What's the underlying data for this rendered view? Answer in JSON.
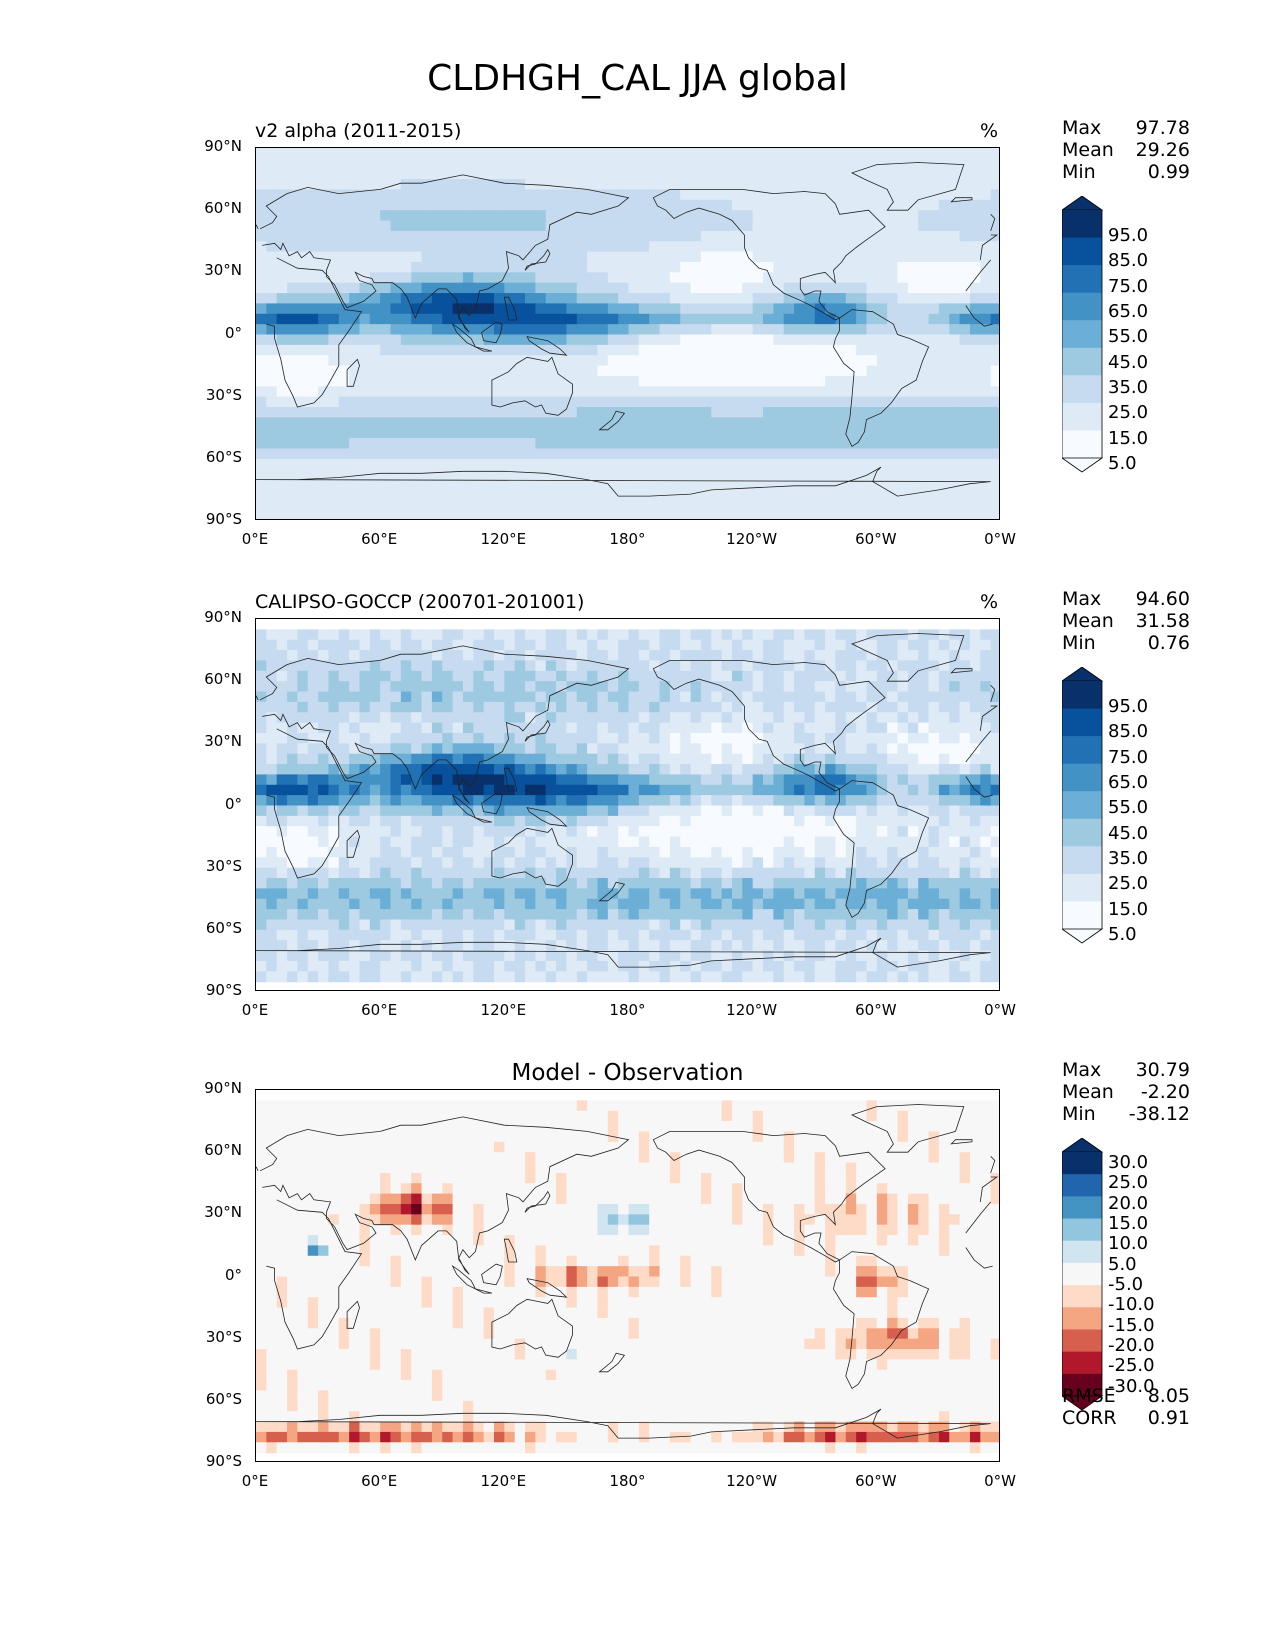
{
  "title": "CLDHGH_CAL JJA global",
  "axes": {
    "lat_labels": [
      "90°N",
      "60°N",
      "30°N",
      "0°",
      "30°S",
      "60°S",
      "90°S"
    ],
    "lon_labels": [
      "0°E",
      "60°E",
      "120°E",
      "180°",
      "120°W",
      "60°W",
      "0°W"
    ]
  },
  "panels": [
    {
      "subtitle": "v2 alpha (2011-2015)",
      "units": "%",
      "stats": {
        "max_label": "Max",
        "max": "97.78",
        "mean_label": "Mean",
        "mean": "29.26",
        "min_label": "Min",
        "min": "0.99"
      },
      "colorbar": {
        "ticks": [
          "95.0",
          "85.0",
          "75.0",
          "65.0",
          "55.0",
          "45.0",
          "35.0",
          "25.0",
          "15.0",
          "5.0"
        ],
        "colors": [
          "#08306b",
          "#08519c",
          "#2171b5",
          "#4292c6",
          "#6baed6",
          "#9ecae1",
          "#c6dbef",
          "#deebf7",
          "#f7fbff"
        ]
      }
    },
    {
      "subtitle": "CALIPSO-GOCCP (200701-201001)",
      "units": "%",
      "stats": {
        "max_label": "Max",
        "max": "94.60",
        "mean_label": "Mean",
        "mean": "31.58",
        "min_label": "Min",
        "min": "0.76"
      },
      "colorbar": {
        "ticks": [
          "95.0",
          "85.0",
          "75.0",
          "65.0",
          "55.0",
          "45.0",
          "35.0",
          "25.0",
          "15.0",
          "5.0"
        ],
        "colors": [
          "#08306b",
          "#08519c",
          "#2171b5",
          "#4292c6",
          "#6baed6",
          "#9ecae1",
          "#c6dbef",
          "#deebf7",
          "#f7fbff"
        ]
      }
    },
    {
      "subtitle": "Model - Observation",
      "units": "",
      "stats": {
        "max_label": "Max",
        "max": "30.79",
        "mean_label": "Mean",
        "mean": "-2.20",
        "min_label": "Min",
        "min": "-38.12"
      },
      "colorbar": {
        "ticks": [
          "30.0",
          "25.0",
          "20.0",
          "15.0",
          "10.0",
          "5.0",
          "-5.0",
          "-10.0",
          "-15.0",
          "-20.0",
          "-25.0",
          "-30.0"
        ],
        "colors": [
          "#08306b",
          "#2166ac",
          "#4393c3",
          "#92c5de",
          "#d1e5f0",
          "#f7f7f7",
          "#fddbc7",
          "#f4a582",
          "#d6604d",
          "#b2182b",
          "#67001f"
        ]
      },
      "metrics": {
        "rmse_label": "RMSE",
        "rmse": "8.05",
        "corr_label": "CORR",
        "corr": "0.91"
      }
    }
  ]
}
